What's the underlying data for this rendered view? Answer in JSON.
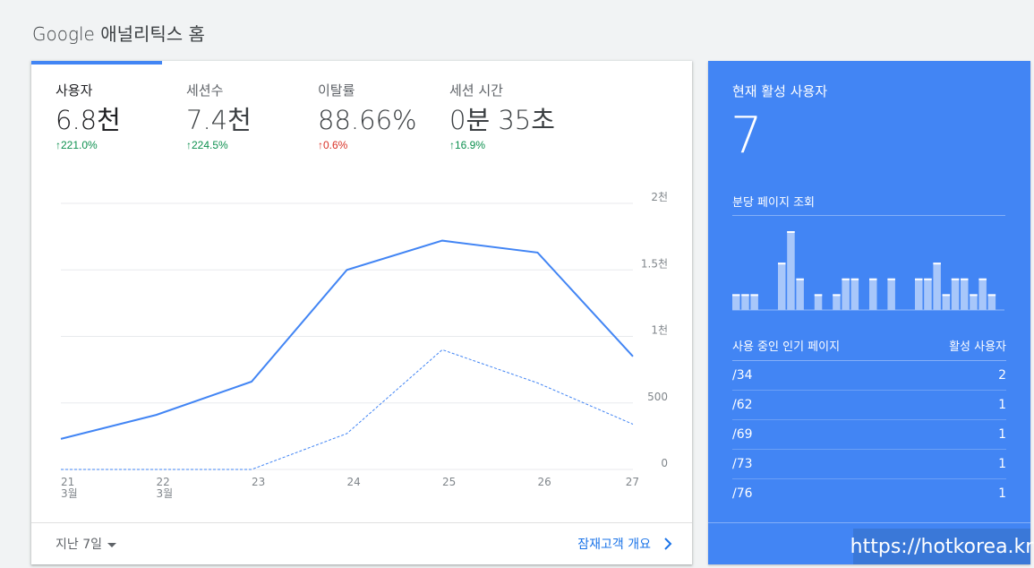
{
  "header": {
    "title": "Google 애널리틱스 홈"
  },
  "metrics": [
    {
      "label": "사용자",
      "value": "6.8천",
      "delta": "221.0%",
      "direction": "up"
    },
    {
      "label": "세션수",
      "value": "7.4천",
      "delta": "224.5%",
      "direction": "up"
    },
    {
      "label": "이탈률",
      "value": "88.66%",
      "delta": "0.6%",
      "direction": "up-bad"
    },
    {
      "label": "세션 시간",
      "value": "0분 35초",
      "delta": "16.9%",
      "direction": "up"
    }
  ],
  "chart_data": {
    "type": "line",
    "x": [
      "21",
      "22",
      "23",
      "24",
      "25",
      "26",
      "27"
    ],
    "x_sublabels": [
      "3월",
      "3월",
      "",
      "",
      "",
      "",
      ""
    ],
    "y_ticks": [
      "0",
      "500",
      "1천",
      "1.5천",
      "2천"
    ],
    "ylim": [
      0,
      2000
    ],
    "series": [
      {
        "values": [
          230,
          410,
          660,
          1500,
          1720,
          1630,
          850
        ],
        "style": "solid",
        "color": "#4285f4"
      },
      {
        "values": [
          0,
          0,
          0,
          270,
          900,
          650,
          340
        ],
        "style": "dashed",
        "color": "#4285f4"
      }
    ]
  },
  "footer": {
    "range_label": "지난 7일",
    "link_label": "잠재고객 개요"
  },
  "realtime": {
    "title": "현재 활성 사용자",
    "count": "7",
    "pageviews_label": "분당 페이지 조회",
    "pageviews_per_minute": [
      1,
      1,
      1,
      0,
      0,
      3,
      5,
      2,
      0,
      1,
      0,
      1,
      2,
      2,
      0,
      2,
      0,
      2,
      0,
      0,
      2,
      2,
      3,
      1,
      2,
      2,
      1,
      2,
      1
    ],
    "table_headers": {
      "page": "사용 중인 인기 페이지",
      "users": "활성 사용자"
    },
    "rows": [
      {
        "page": "/34",
        "users": "2"
      },
      {
        "page": "/62",
        "users": "1"
      },
      {
        "page": "/69",
        "users": "1"
      },
      {
        "page": "/73",
        "users": "1"
      },
      {
        "page": "/76",
        "users": "1"
      }
    ]
  },
  "watermark": {
    "text": "https://hotkorea.kr"
  }
}
